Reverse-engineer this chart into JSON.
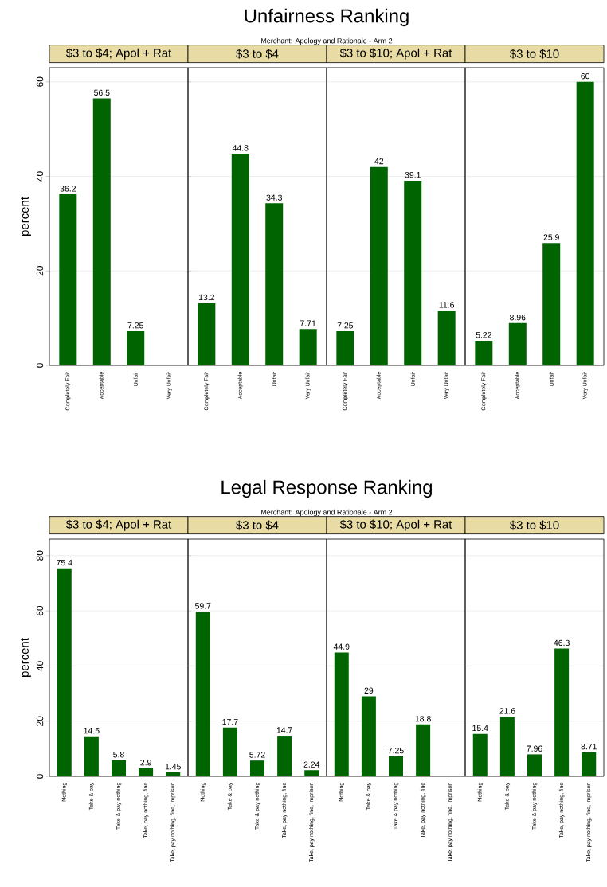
{
  "chart_data": [
    {
      "type": "bar",
      "title": "$3 to $4; Apol + Rat",
      "annotations": [
        "Unfairness Ranking",
        "Merchant: Apology and Rationale - Arm 2"
      ],
      "ylabel": "percent",
      "categories": [
        "Completely Fair",
        "Acceptable",
        "Unfair",
        "Very Unfair"
      ],
      "values": [
        36.2,
        56.5,
        7.25,
        null
      ],
      "color": "#006400",
      "ylim": [
        0,
        63
      ],
      "yticks": [
        0,
        20,
        40,
        60
      ],
      "grid": "y",
      "data_labels": true
    },
    {
      "type": "bar",
      "title": "$3 to $4",
      "categories": [
        "Completely Fair",
        "Acceptable",
        "Unfair",
        "Very Unfair"
      ],
      "values": [
        13.2,
        44.8,
        34.3,
        7.71
      ],
      "color": "#006400",
      "ylim": [
        0,
        63
      ],
      "yticks": [
        0,
        20,
        40,
        60
      ],
      "grid": "y",
      "data_labels": true,
      "tick_labels": "x"
    },
    {
      "type": "bar",
      "title": "$3 to $10; Apol + Rat",
      "categories": [
        "Completely Fair",
        "Acceptable",
        "Unfair",
        "Very Unfair"
      ],
      "values": [
        7.25,
        42,
        39.1,
        11.6
      ],
      "color": "#006400",
      "ylim": [
        0,
        63
      ],
      "yticks": [
        0,
        20,
        40,
        60
      ],
      "grid": "y",
      "data_labels": true,
      "tick_labels": "x"
    },
    {
      "type": "bar",
      "title": "$3 to $10",
      "categories": [
        "Completely Fair",
        "Acceptable",
        "Unfair",
        "Very Unfair"
      ],
      "values": [
        5.22,
        8.96,
        25.9,
        60
      ],
      "color": "#006400",
      "ylim": [
        0,
        63
      ],
      "yticks": [
        0,
        20,
        40,
        60
      ],
      "grid": "y",
      "data_labels": true,
      "tick_labels": "x"
    },
    {
      "type": "bar",
      "title": "$3 to $4; Apol + Rat",
      "annotations": [
        "Legal Response Ranking",
        "Merchant: Apology and Rationale - Arm 2"
      ],
      "ylabel": "percent",
      "categories": [
        "Nothing",
        "Take & pay",
        "Take & pay nothing",
        "Take, pay nothing, fine",
        "Take, pay nothing, fine, imprison"
      ],
      "values": [
        75.4,
        14.5,
        5.8,
        2.9,
        1.45
      ],
      "color": "#006400",
      "ylim": [
        0,
        86
      ],
      "yticks": [
        0,
        20,
        40,
        60,
        80
      ],
      "grid": "y",
      "data_labels": true
    },
    {
      "type": "bar",
      "title": "$3 to $4",
      "categories": [
        "Nothing",
        "Take & pay",
        "Take & pay nothing",
        "Take, pay nothing, fine",
        "Take, pay nothing, fine, imprison"
      ],
      "values": [
        59.7,
        17.7,
        5.72,
        14.7,
        2.24
      ],
      "color": "#006400",
      "ylim": [
        0,
        86
      ],
      "yticks": [
        0,
        20,
        40,
        60,
        80
      ],
      "grid": "y",
      "data_labels": true,
      "tick_labels": "x"
    },
    {
      "type": "bar",
      "title": "$3 to $10; Apol + Rat",
      "categories": [
        "Nothing",
        "Take & pay",
        "Take & pay nothing",
        "Take, pay nothing, fine",
        "Take, pay nothing, fine, imprison"
      ],
      "values": [
        44.9,
        29,
        7.25,
        18.8,
        null
      ],
      "color": "#006400",
      "ylim": [
        0,
        86
      ],
      "yticks": [
        0,
        20,
        40,
        60,
        80
      ],
      "grid": "y",
      "data_labels": true,
      "tick_labels": "x"
    },
    {
      "type": "bar",
      "title": "$3 to $10",
      "categories": [
        "Nothing",
        "Take & pay",
        "Take & pay nothing",
        "Take, pay nothing, fine",
        "Take, pay nothing, fine, imprison"
      ],
      "values": [
        15.4,
        21.6,
        7.96,
        46.3,
        8.71
      ],
      "color": "#006400",
      "ylim": [
        0,
        86
      ],
      "yticks": [
        0,
        20,
        40,
        60,
        80
      ],
      "grid": "y",
      "data_labels": true,
      "tick_labels": "x"
    }
  ]
}
